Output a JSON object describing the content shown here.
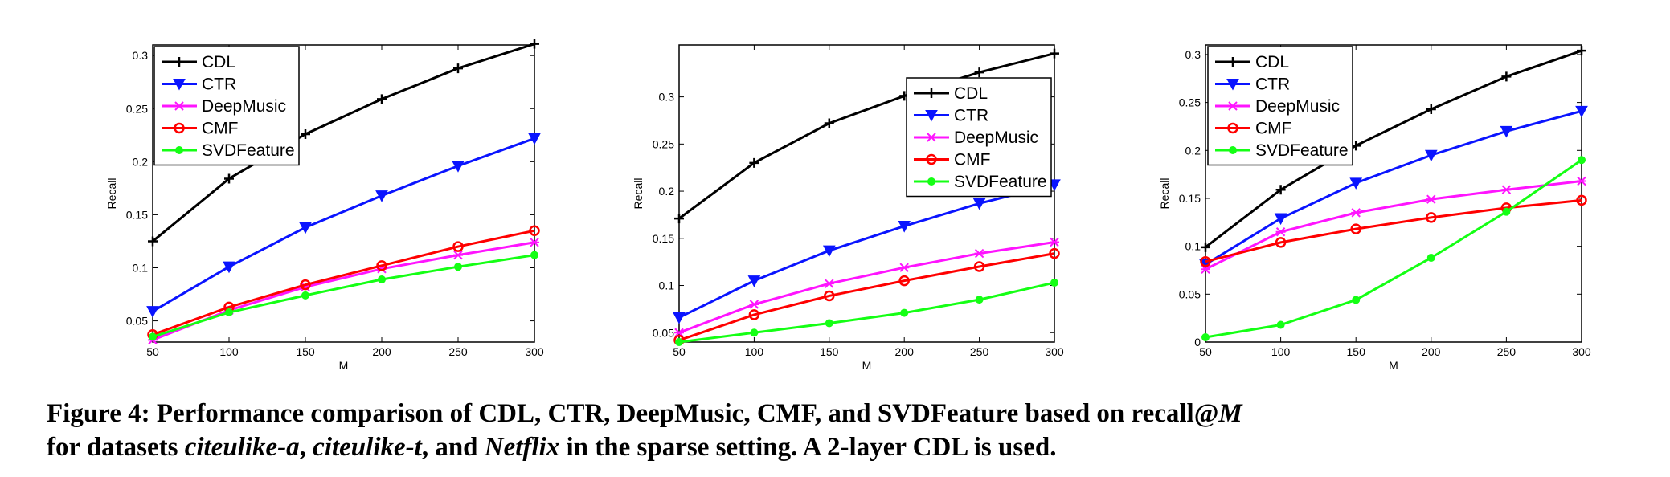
{
  "colors": {
    "CDL": "#000000",
    "CTR": "#0a14ff",
    "DeepMusic": "#ff14ff",
    "CMF": "#ff0000",
    "SVDFeature": "#14ff14"
  },
  "chart_data": [
    {
      "type": "line",
      "xlabel": "M",
      "ylabel": "Recall",
      "xlim": [
        50,
        300
      ],
      "ylim": [
        0.03,
        0.31
      ],
      "xticks": [
        "50",
        "100",
        "150",
        "200",
        "250",
        "300"
      ],
      "yticks": [
        "0.05",
        "0.1",
        "0.15",
        "0.2",
        "0.25",
        "0.3"
      ],
      "legend_position": "top-left",
      "x": [
        50,
        100,
        150,
        200,
        250,
        300
      ],
      "series": [
        {
          "name": "CDL",
          "marker": "plus",
          "values": [
            0.125,
            0.184,
            0.226,
            0.259,
            0.288,
            0.311
          ]
        },
        {
          "name": "CTR",
          "marker": "triangle-down",
          "values": [
            0.059,
            0.101,
            0.138,
            0.168,
            0.196,
            0.222
          ]
        },
        {
          "name": "DeepMusic",
          "marker": "x",
          "values": [
            0.032,
            0.06,
            0.082,
            0.099,
            0.112,
            0.124
          ]
        },
        {
          "name": "CMF",
          "marker": "circle",
          "values": [
            0.037,
            0.063,
            0.084,
            0.102,
            0.12,
            0.135
          ]
        },
        {
          "name": "SVDFeature",
          "marker": "dot",
          "values": [
            0.035,
            0.058,
            0.074,
            0.089,
            0.101,
            0.112
          ]
        }
      ]
    },
    {
      "type": "line",
      "xlabel": "M",
      "ylabel": "Recall",
      "xlim": [
        50,
        300
      ],
      "ylim": [
        0.04,
        0.355
      ],
      "xticks": [
        "50",
        "100",
        "150",
        "200",
        "250",
        "300"
      ],
      "yticks": [
        "0.05",
        "0.1",
        "0.15",
        "0.2",
        "0.25",
        "0.3"
      ],
      "legend_position": "top-right",
      "x": [
        50,
        100,
        150,
        200,
        250,
        300
      ],
      "series": [
        {
          "name": "CDL",
          "marker": "plus",
          "values": [
            0.171,
            0.23,
            0.272,
            0.301,
            0.326,
            0.346
          ]
        },
        {
          "name": "CTR",
          "marker": "triangle-down",
          "values": [
            0.066,
            0.105,
            0.137,
            0.163,
            0.187,
            0.207
          ]
        },
        {
          "name": "DeepMusic",
          "marker": "x",
          "values": [
            0.05,
            0.08,
            0.102,
            0.119,
            0.134,
            0.146
          ]
        },
        {
          "name": "CMF",
          "marker": "circle",
          "values": [
            0.042,
            0.069,
            0.089,
            0.105,
            0.12,
            0.134
          ]
        },
        {
          "name": "SVDFeature",
          "marker": "dot",
          "values": [
            0.04,
            0.05,
            0.06,
            0.071,
            0.085,
            0.103
          ]
        }
      ]
    },
    {
      "type": "line",
      "xlabel": "M",
      "ylabel": "Recall",
      "xlim": [
        50,
        300
      ],
      "ylim": [
        0,
        0.31
      ],
      "xticks": [
        "50",
        "100",
        "150",
        "200",
        "250",
        "300"
      ],
      "yticks": [
        "0",
        "0.05",
        "0.1",
        "0.15",
        "0.2",
        "0.25",
        "0.3"
      ],
      "legend_position": "top-left",
      "x": [
        50,
        100,
        150,
        200,
        250,
        300
      ],
      "series": [
        {
          "name": "CDL",
          "marker": "plus",
          "values": [
            0.099,
            0.159,
            0.205,
            0.243,
            0.277,
            0.304
          ]
        },
        {
          "name": "CTR",
          "marker": "triangle-down",
          "values": [
            0.081,
            0.129,
            0.166,
            0.195,
            0.22,
            0.241
          ]
        },
        {
          "name": "DeepMusic",
          "marker": "x",
          "values": [
            0.076,
            0.115,
            0.135,
            0.149,
            0.159,
            0.168
          ]
        },
        {
          "name": "CMF",
          "marker": "circle",
          "values": [
            0.084,
            0.104,
            0.118,
            0.13,
            0.14,
            0.148
          ]
        },
        {
          "name": "SVDFeature",
          "marker": "dot",
          "values": [
            0.005,
            0.018,
            0.044,
            0.088,
            0.136,
            0.19
          ]
        }
      ]
    }
  ],
  "caption": {
    "part1": "Figure 4:  Performance comparison of CDL, CTR, DeepMusic, CMF, and SVDFeature based on recall@",
    "m": "M",
    "part2": "for datasets ",
    "ds1": "citeulike-a",
    "sep1": ", ",
    "ds2": "citeulike-t",
    "sep2": ", and ",
    "ds3": "Netflix",
    "part3": " in the sparse setting. A 2-layer CDL is used."
  }
}
